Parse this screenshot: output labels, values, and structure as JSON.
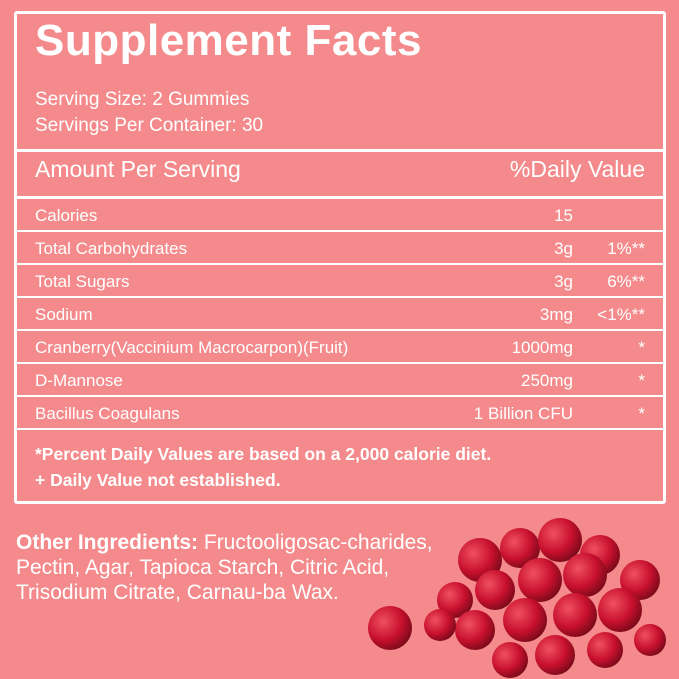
{
  "title": "Supplement Facts",
  "serving_size": "Serving Size: 2 Gummies",
  "servings_per_container": "Servings Per Container: 30",
  "header": {
    "amount": "Amount Per Serving",
    "daily_value": "%Daily Value"
  },
  "rows": [
    {
      "name": "Calories",
      "amount": "15",
      "dv": ""
    },
    {
      "name": "Total Carbohydrates",
      "amount": "3g",
      "dv": "1%**"
    },
    {
      "name": "Total Sugars",
      "amount": "3g",
      "dv": "6%**"
    },
    {
      "name": "Sodium",
      "amount": "3mg",
      "dv": "<1%**"
    },
    {
      "name": "Cranberry(Vaccinium Macrocarpon)(Fruit)",
      "amount": "1000mg",
      "dv": "*"
    },
    {
      "name": "D-Mannose",
      "amount": "250mg",
      "dv": "*"
    },
    {
      "name": "Bacillus Coagulans",
      "amount": "1 Billion CFU",
      "dv": "*"
    }
  ],
  "footnotes": [
    "*Percent Daily Values are based on a 2,000 calorie diet.",
    "+ Daily Value not established."
  ],
  "other_ingredients": {
    "label": "Other Ingredients:",
    "text": " Fructooligosac-charides, Pectin, Agar, Tapioca Starch, Citric Acid, Trisodium Citrate, Carnau-ba Wax."
  },
  "colors": {
    "background": "#f48a8b",
    "text": "#ffffff",
    "berry": "#c8102e"
  }
}
